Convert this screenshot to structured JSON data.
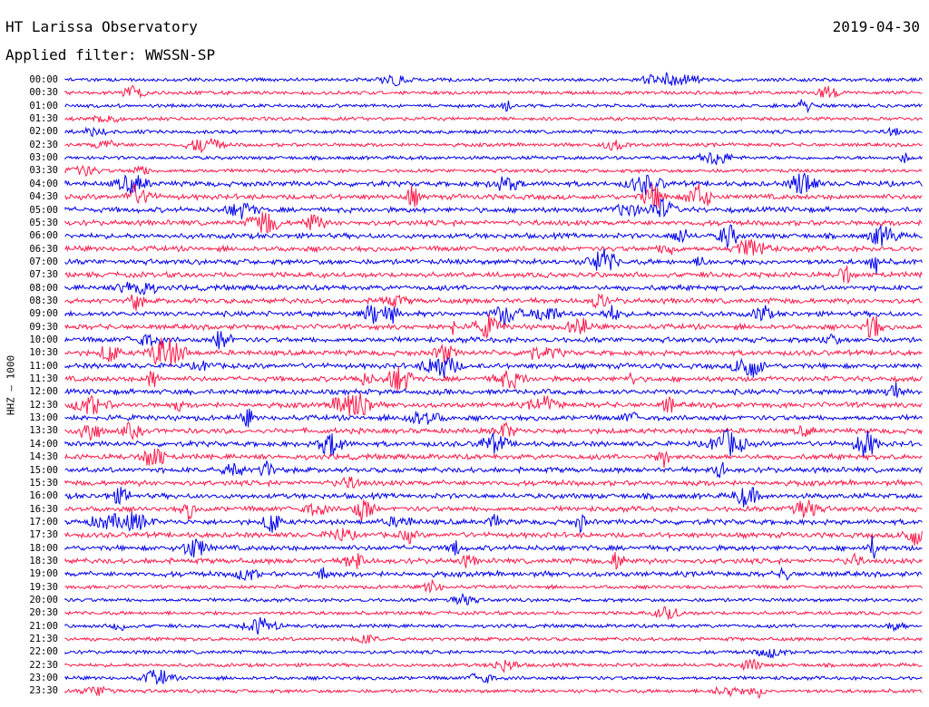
{
  "header": {
    "title": "HT Larissa Observatory",
    "date": "2019-04-30",
    "filter": "Applied filter: WWSSN-SP"
  },
  "channel_label": "HHZ – 1000",
  "trace_colors": [
    "#0000ee",
    "#ff1a4a"
  ],
  "traces": [
    {
      "time": "00:00"
    },
    {
      "time": "00:30"
    },
    {
      "time": "01:00"
    },
    {
      "time": "01:30"
    },
    {
      "time": "02:00"
    },
    {
      "time": "02:30"
    },
    {
      "time": "03:00"
    },
    {
      "time": "03:30"
    },
    {
      "time": "04:00"
    },
    {
      "time": "04:30"
    },
    {
      "time": "05:00"
    },
    {
      "time": "05:30"
    },
    {
      "time": "06:00"
    },
    {
      "time": "06:30"
    },
    {
      "time": "07:00"
    },
    {
      "time": "07:30"
    },
    {
      "time": "08:00"
    },
    {
      "time": "08:30"
    },
    {
      "time": "09:00"
    },
    {
      "time": "09:30"
    },
    {
      "time": "10:00"
    },
    {
      "time": "10:30"
    },
    {
      "time": "11:00"
    },
    {
      "time": "11:30"
    },
    {
      "time": "12:00"
    },
    {
      "time": "12:30"
    },
    {
      "time": "13:00"
    },
    {
      "time": "13:30"
    },
    {
      "time": "14:00"
    },
    {
      "time": "14:30"
    },
    {
      "time": "15:00"
    },
    {
      "time": "15:30"
    },
    {
      "time": "16:00"
    },
    {
      "time": "16:30"
    },
    {
      "time": "17:00"
    },
    {
      "time": "17:30"
    },
    {
      "time": "18:00"
    },
    {
      "time": "18:30"
    },
    {
      "time": "19:00"
    },
    {
      "time": "19:30"
    },
    {
      "time": "20:00"
    },
    {
      "time": "20:30"
    },
    {
      "time": "21:00"
    },
    {
      "time": "21:30"
    },
    {
      "time": "22:00"
    },
    {
      "time": "22:30"
    },
    {
      "time": "23:00"
    },
    {
      "time": "23:30"
    }
  ]
}
